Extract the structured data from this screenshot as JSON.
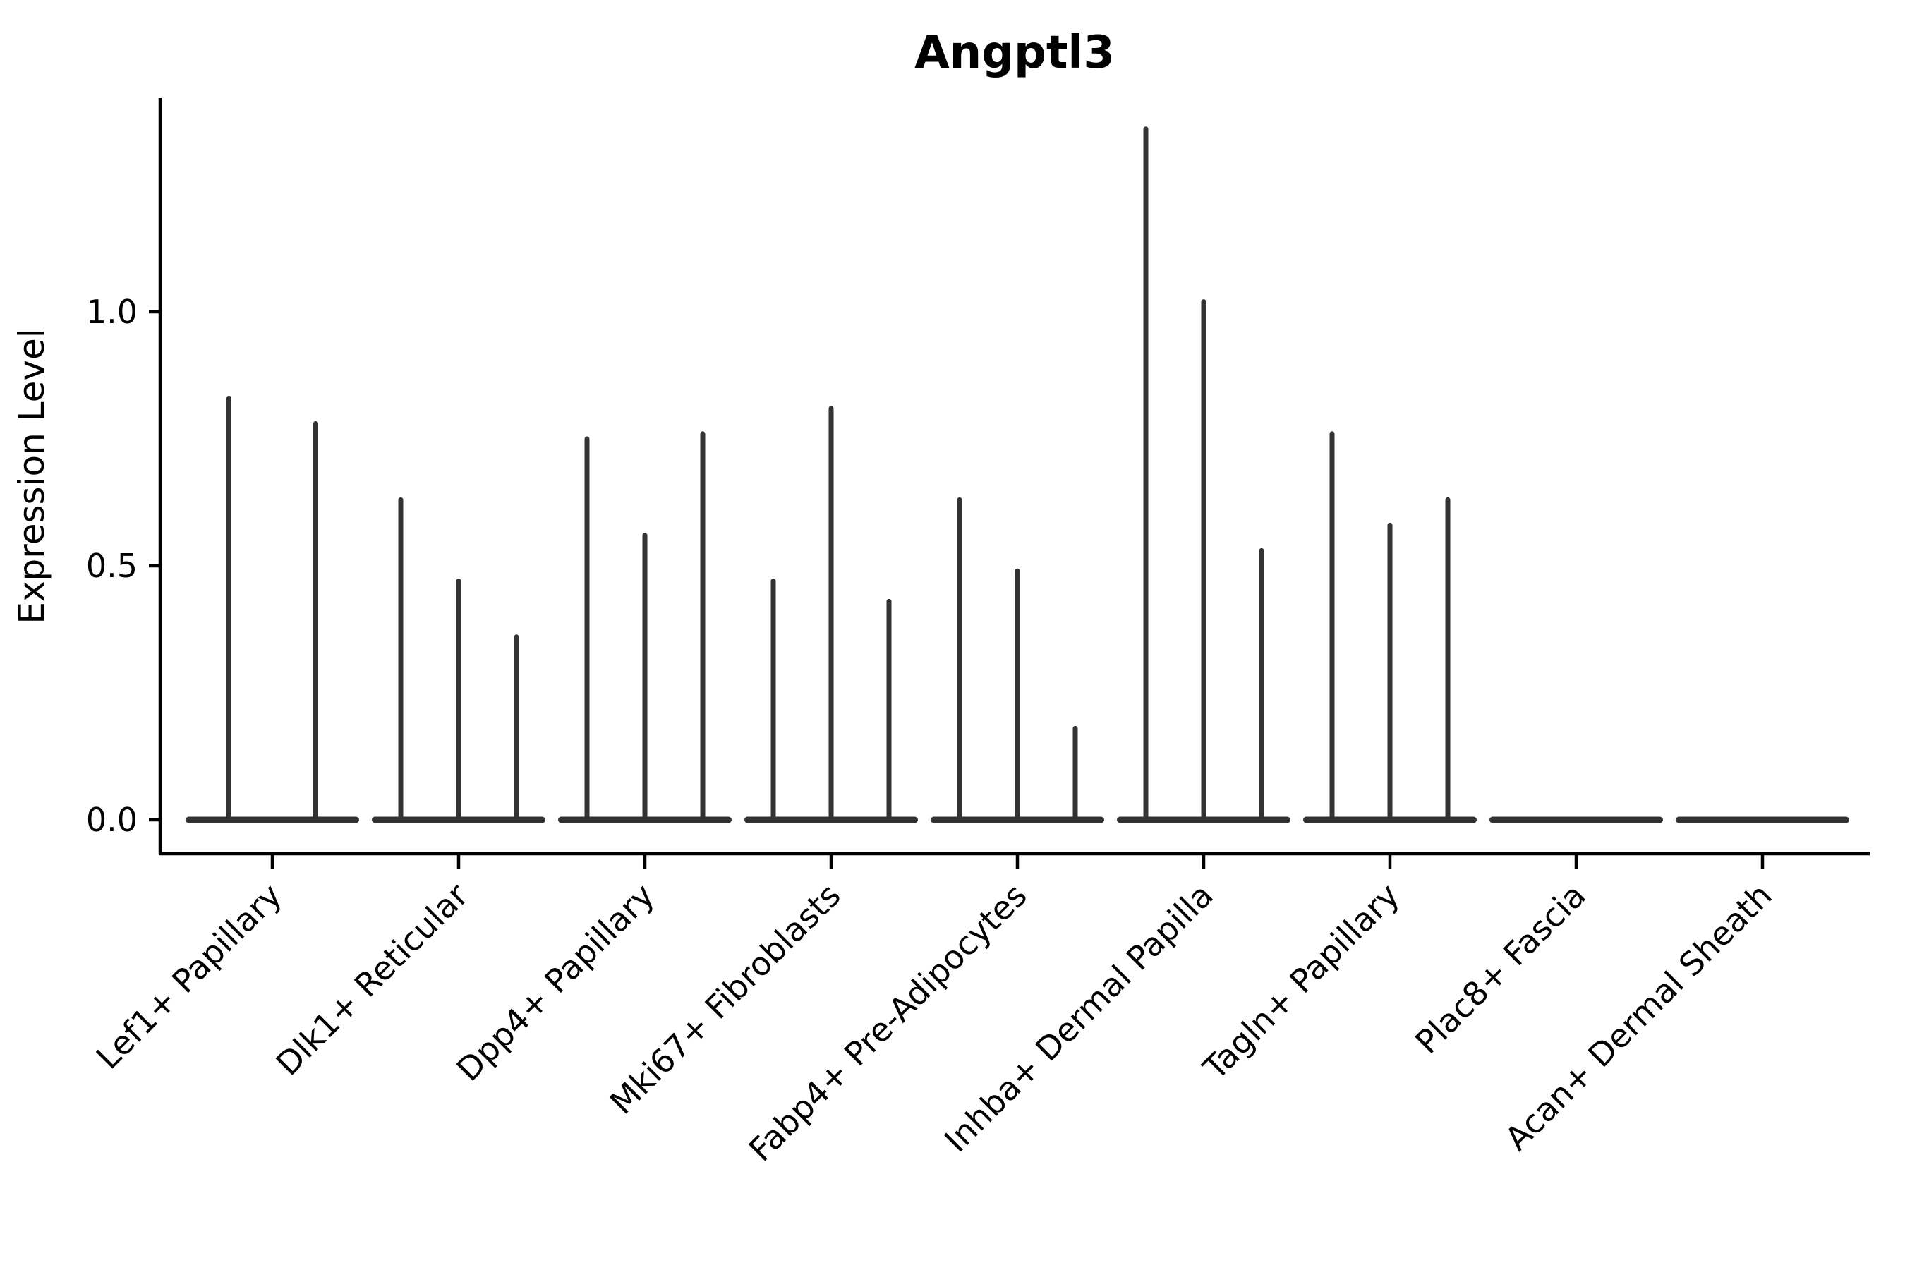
{
  "chart_data": {
    "type": "violin",
    "title": "Angptl3",
    "ylabel": "Expression Level",
    "xlabel": "",
    "yticks": [
      0.0,
      0.5,
      1.0
    ],
    "ylim": [
      0,
      1.42
    ],
    "grid": false,
    "legend": "none",
    "categories": [
      "Lef1+ Papillary",
      "Dlk1+ Reticular",
      "Dpp4+ Papillary",
      "Mki67+ Fibroblasts",
      "Fabp4+ Pre-Adipocytes",
      "Inhba+ Dermal Papilla",
      "Tagln+ Papillary",
      "Plac8+ Fascia",
      "Acan+ Dermal Sheath"
    ],
    "groups": [
      {
        "label": "Lef1+ Papillary",
        "violin_peaks": [
          0.83,
          0.78
        ]
      },
      {
        "label": "Dlk1+ Reticular",
        "violin_peaks": [
          0.63,
          0.47,
          0.36
        ]
      },
      {
        "label": "Dpp4+ Papillary",
        "violin_peaks": [
          0.75,
          0.56,
          0.76
        ]
      },
      {
        "label": "Mki67+ Fibroblasts",
        "violin_peaks": [
          0.47,
          0.81,
          0.43
        ]
      },
      {
        "label": "Fabp4+ Pre-Adipocytes",
        "violin_peaks": [
          0.63,
          0.49,
          0.18
        ]
      },
      {
        "label": "Inhba+ Dermal Papilla",
        "violin_peaks": [
          1.36,
          1.02,
          0.53
        ]
      },
      {
        "label": "Tagln+ Papillary",
        "violin_peaks": [
          0.76,
          0.58,
          0.63
        ]
      },
      {
        "label": "Plac8+ Fascia",
        "violin_peaks": [
          0.0,
          0.0,
          0.0
        ]
      },
      {
        "label": "Acan+ Dermal Sheath",
        "violin_peaks": [
          0.0,
          0.0,
          0.0
        ]
      }
    ],
    "colors": {
      "violin": "#333333",
      "axis": "#000000",
      "text": "#000000",
      "background": "#ffffff"
    }
  }
}
